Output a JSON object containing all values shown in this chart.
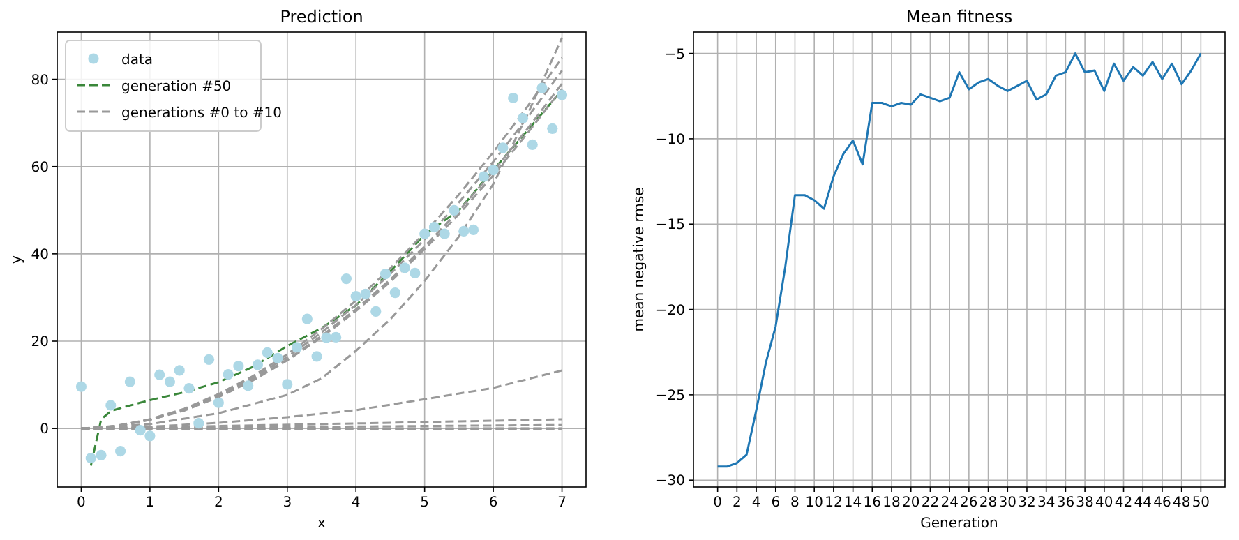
{
  "chart_data": [
    {
      "type": "line",
      "title": "Prediction",
      "xlabel": "x",
      "ylabel": "y",
      "xlim": [
        -0.35,
        7.35
      ],
      "ylim": [
        -13.4,
        90.8
      ],
      "xticks": [
        0,
        1,
        2,
        3,
        4,
        5,
        6,
        7
      ],
      "yticks": [
        0,
        20,
        40,
        60,
        80
      ],
      "grid": true,
      "legend": "top left",
      "series": [
        {
          "name": "data",
          "type": "scatter",
          "marker": "circle",
          "color": "#add8e6",
          "x": [
            0,
            0.14,
            0.29,
            0.43,
            0.57,
            0.71,
            0.86,
            1,
            1.14,
            1.29,
            1.43,
            1.57,
            1.71,
            1.86,
            2,
            2.14,
            2.29,
            2.43,
            2.57,
            2.71,
            2.86,
            3,
            3.14,
            3.29,
            3.43,
            3.57,
            3.71,
            3.86,
            4,
            4.14,
            4.29,
            4.43,
            4.57,
            4.71,
            4.86,
            5,
            5.14,
            5.29,
            5.43,
            5.57,
            5.71,
            5.86,
            6,
            6.14,
            6.29,
            6.43,
            6.57,
            6.71,
            6.86,
            7
          ],
          "values": [
            9.6,
            -6.8,
            -6.1,
            5.3,
            -5.2,
            10.7,
            -0.4,
            -1.7,
            12.3,
            10.7,
            13.3,
            9.2,
            1.2,
            15.8,
            5.9,
            12.4,
            14.3,
            9.8,
            14.6,
            17.4,
            16.1,
            10.1,
            18.6,
            25.1,
            16.5,
            20.8,
            20.9,
            34.3,
            30.3,
            30.8,
            26.8,
            35.4,
            31.1,
            36.8,
            35.6,
            44.6,
            46.1,
            44.6,
            50,
            45.2,
            45.5,
            57.7,
            59.2,
            64.3,
            75.7,
            71.1,
            65,
            78,
            68.7,
            76.4
          ]
        },
        {
          "name": "generation #50",
          "line_style": "dashed",
          "color": "#3a873a",
          "x": [
            0.14,
            0.29,
            0.43,
            0.6,
            1,
            1.5,
            2,
            2.5,
            3,
            3.5,
            4,
            4.5,
            5,
            5.5,
            6,
            6.5,
            7
          ],
          "values": [
            -8.5,
            2.1,
            4,
            4.8,
            6.5,
            8.3,
            10.6,
            14.1,
            18.9,
            23,
            28.2,
            36,
            44.4,
            50,
            59.2,
            68.3,
            77.5
          ]
        },
        {
          "name": "generations #0 to #10",
          "line_style": "dashed",
          "color": "#999999",
          "x": [
            0,
            7
          ],
          "values": [
            0,
            0
          ]
        },
        {
          "line_style": "dashed",
          "color": "#999999",
          "x": [
            0,
            7
          ],
          "values": [
            0,
            0
          ]
        },
        {
          "line_style": "dashed",
          "color": "#999999",
          "x": [
            0,
            7
          ],
          "values": [
            0,
            0
          ]
        },
        {
          "line_style": "dashed",
          "color": "#999999",
          "x": [
            0,
            7
          ],
          "values": [
            0,
            0.8
          ]
        },
        {
          "line_style": "dashed",
          "color": "#999999",
          "x": [
            0,
            3.5,
            7
          ],
          "values": [
            0,
            1,
            2.1
          ]
        },
        {
          "line_style": "dashed",
          "color": "#999999",
          "x": [
            0,
            1,
            2,
            3,
            4,
            5,
            6,
            7
          ],
          "values": [
            0,
            0.4,
            1.3,
            2.6,
            4.2,
            6.7,
            9.3,
            13.3
          ]
        },
        {
          "line_style": "dashed",
          "color": "#999999",
          "x": [
            0,
            1,
            2,
            3,
            3.5,
            4,
            4.5,
            5,
            5.5,
            6,
            6.5,
            7
          ],
          "values": [
            0,
            1,
            3.5,
            7.7,
            11.5,
            17.8,
            25,
            33.8,
            44,
            56,
            72,
            89.5
          ]
        },
        {
          "line_style": "dashed",
          "color": "#999999",
          "x": [
            0,
            0.5,
            1,
            1.5,
            2,
            2.5,
            3,
            3.5,
            4,
            4.5,
            5,
            5.5,
            6,
            6.5,
            7
          ],
          "values": [
            0,
            0.6,
            2.1,
            4.5,
            7.9,
            12,
            17,
            22.8,
            29.3,
            36.7,
            44.8,
            53.6,
            63.3,
            73.8,
            84.9
          ]
        },
        {
          "line_style": "dashed",
          "color": "#999999",
          "x": [
            0,
            0.5,
            1,
            1.5,
            2,
            2.5,
            3,
            3.5,
            4,
            4.5,
            5,
            5.5,
            6,
            6.5,
            7
          ],
          "values": [
            0,
            0.5,
            2.1,
            4.4,
            7.6,
            11.6,
            16.4,
            22,
            28.3,
            35.4,
            43.3,
            51.8,
            61.1,
            71.3,
            82
          ]
        },
        {
          "line_style": "dashed",
          "color": "#999999",
          "x": [
            0,
            0.5,
            1,
            1.5,
            2,
            2.5,
            3,
            3.5,
            4,
            4.5,
            5,
            5.5,
            6,
            6.5,
            7
          ],
          "values": [
            0,
            0.5,
            2,
            4.2,
            7.3,
            11.2,
            15.8,
            21.2,
            27.3,
            34.1,
            41.7,
            49.9,
            58.9,
            68.7,
            79
          ]
        },
        {
          "line_style": "dashed",
          "color": "#999999",
          "x": [
            0,
            0.5,
            1,
            1.5,
            2,
            2.5,
            3,
            3.5,
            4,
            4.5,
            5,
            5.5,
            6,
            6.5,
            7
          ],
          "values": [
            0,
            0.5,
            2,
            4.1,
            7.2,
            11,
            15.6,
            20.9,
            26.9,
            33.6,
            41.1,
            49.1,
            58,
            67.7,
            77.8
          ]
        }
      ]
    },
    {
      "type": "line",
      "title": "Mean fitness",
      "xlabel": "Generation",
      "ylabel": "mean negative rmse",
      "xlim": [
        -2.5,
        52.5
      ],
      "ylim": [
        -30.4,
        -3.75
      ],
      "xticks": [
        0,
        2,
        4,
        6,
        8,
        10,
        12,
        14,
        16,
        18,
        20,
        22,
        24,
        26,
        28,
        30,
        32,
        34,
        36,
        38,
        40,
        42,
        44,
        46,
        48,
        50
      ],
      "yticks": [
        {
          "value": -30,
          "label": "−30"
        },
        {
          "value": -25,
          "label": "−25"
        },
        {
          "value": -20,
          "label": "−20"
        },
        {
          "value": -15,
          "label": "−15"
        },
        {
          "value": -10,
          "label": "−10"
        },
        {
          "value": -5,
          "label": "−5"
        }
      ],
      "grid": true,
      "series": [
        {
          "color": "#1f77b4",
          "x": [
            0,
            1,
            2,
            3,
            4,
            5,
            6,
            7,
            8,
            9,
            10,
            11,
            12,
            13,
            14,
            15,
            16,
            17,
            18,
            19,
            20,
            21,
            22,
            23,
            24,
            25,
            26,
            27,
            28,
            29,
            30,
            31,
            32,
            33,
            34,
            35,
            36,
            37,
            38,
            39,
            40,
            41,
            42,
            43,
            44,
            45,
            46,
            47,
            48,
            49,
            50
          ],
          "values": [
            -29.2,
            -29.2,
            -29,
            -28.5,
            -25.9,
            -23.1,
            -21,
            -17.5,
            -13.3,
            -13.3,
            -13.6,
            -14.1,
            -12.2,
            -10.9,
            -10.1,
            -11.5,
            -7.9,
            -7.9,
            -8.1,
            -7.9,
            -8,
            -7.4,
            -7.6,
            -7.8,
            -7.6,
            -6.1,
            -7.1,
            -6.7,
            -6.5,
            -6.9,
            -7.2,
            -6.9,
            -6.6,
            -7.7,
            -7.4,
            -6.3,
            -6.1,
            -5,
            -6.1,
            -6,
            -7.2,
            -5.6,
            -6.6,
            -5.8,
            -6.3,
            -5.5,
            -6.5,
            -5.6,
            -6.8,
            -6,
            -5
          ]
        }
      ]
    }
  ]
}
